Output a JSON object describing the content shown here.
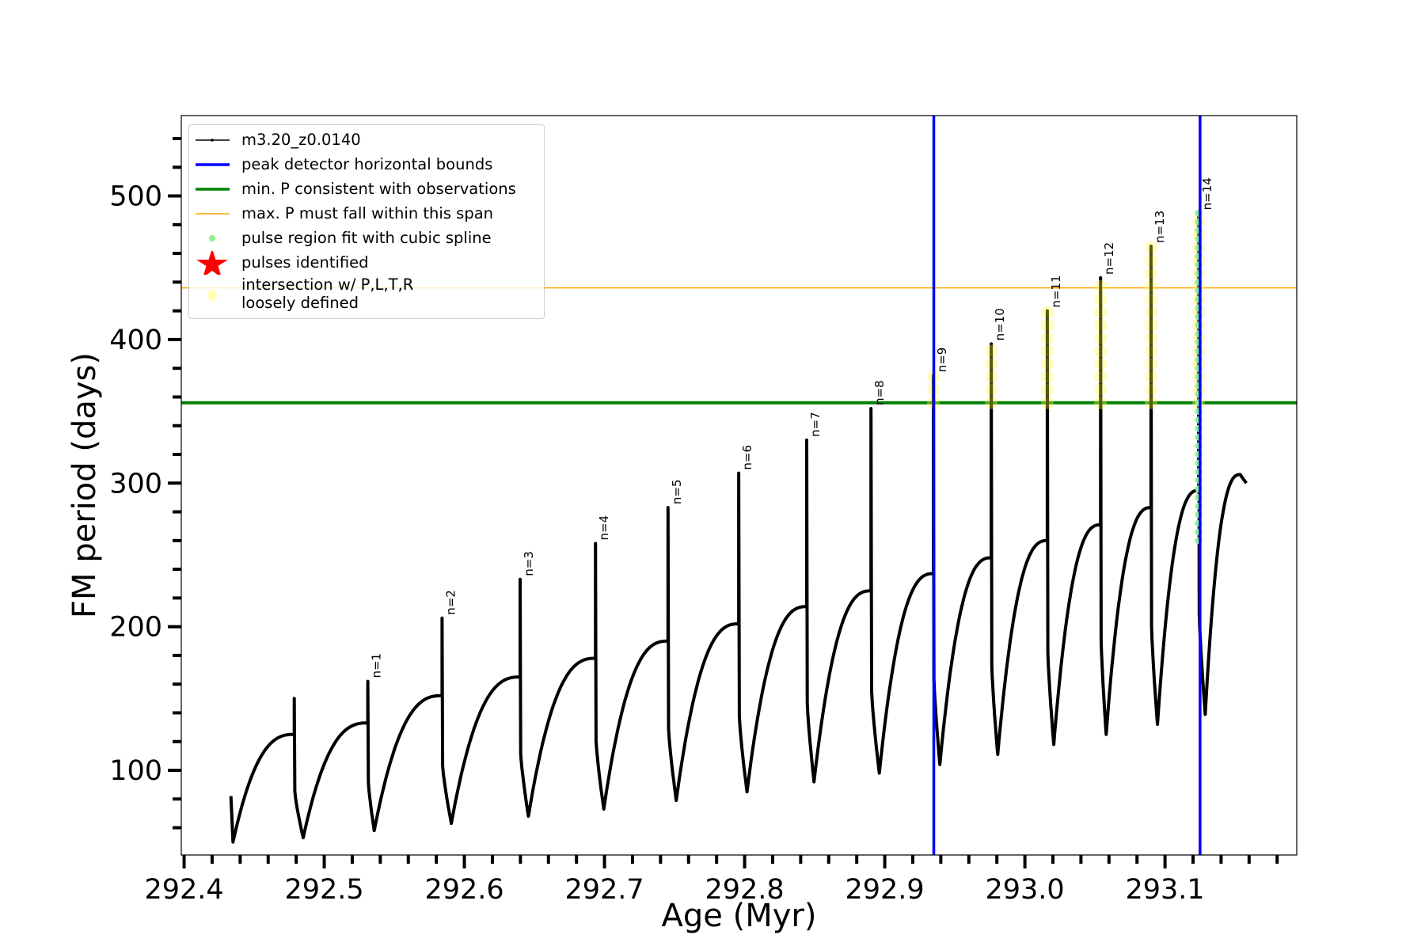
{
  "chart_data": {
    "type": "line",
    "xlabel": "Age (Myr)",
    "ylabel": "FM period (days)",
    "xlim": [
      292.398,
      293.194
    ],
    "ylim": [
      41,
      556
    ],
    "xticks": [
      292.4,
      292.5,
      292.6,
      292.7,
      292.8,
      292.9,
      293.0,
      293.1
    ],
    "xtick_labels": [
      "292.4",
      "292.5",
      "292.6",
      "292.7",
      "292.8",
      "292.9",
      "293.0",
      "293.1"
    ],
    "yticks": [
      100,
      200,
      300,
      400,
      500
    ],
    "ytick_labels": [
      "100",
      "200",
      "300",
      "400",
      "500"
    ],
    "grid": false,
    "legend_position": "top-left",
    "series_name": "m3.20_z0.0140",
    "start": {
      "age": 292.4334,
      "period": 82
    },
    "pulses": [
      {
        "label": "",
        "spike_age": 292.4786,
        "pre_max": 125,
        "peak": 150,
        "min_age": 292.485,
        "min": 53
      },
      {
        "label": "n=1",
        "spike_age": 292.5311,
        "pre_max": 133,
        "peak": 162,
        "min_age": 292.5357,
        "min": 58
      },
      {
        "label": "n=2",
        "spike_age": 292.5841,
        "pre_max": 152,
        "peak": 206,
        "min_age": 292.5907,
        "min": 63
      },
      {
        "label": "n=3",
        "spike_age": 292.6398,
        "pre_max": 165,
        "peak": 233,
        "min_age": 292.6457,
        "min": 68
      },
      {
        "label": "n=4",
        "spike_age": 292.6936,
        "pre_max": 178,
        "peak": 258,
        "min_age": 292.6995,
        "min": 73
      },
      {
        "label": "n=5",
        "spike_age": 292.7453,
        "pre_max": 190,
        "peak": 283,
        "min_age": 292.7512,
        "min": 79
      },
      {
        "label": "n=6",
        "spike_age": 292.7958,
        "pre_max": 202,
        "peak": 307,
        "min_age": 292.8017,
        "min": 85
      },
      {
        "label": "n=7",
        "spike_age": 292.8443,
        "pre_max": 214,
        "peak": 330,
        "min_age": 292.8495,
        "min": 92
      },
      {
        "label": "n=8",
        "spike_age": 292.8902,
        "pre_max": 225,
        "peak": 352,
        "min_age": 292.8961,
        "min": 98
      },
      {
        "label": "n=9",
        "spike_age": 292.9347,
        "pre_max": 237,
        "peak": 375,
        "min_age": 292.9393,
        "min": 104
      },
      {
        "label": "n=10",
        "spike_age": 292.976,
        "pre_max": 248,
        "peak": 397,
        "min_age": 292.9806,
        "min": 111
      },
      {
        "label": "n=11",
        "spike_age": 293.016,
        "pre_max": 260,
        "peak": 420,
        "min_age": 293.0206,
        "min": 118
      },
      {
        "label": "n=12",
        "spike_age": 293.054,
        "pre_max": 271,
        "peak": 443,
        "min_age": 293.058,
        "min": 125
      },
      {
        "label": "n=13",
        "spike_age": 293.09,
        "pre_max": 283,
        "peak": 465,
        "min_age": 293.0946,
        "min": 132
      },
      {
        "label": "n=14",
        "spike_age": 293.124,
        "pre_max": 295,
        "peak": 488,
        "min_age": 293.1287,
        "min": 139
      }
    ],
    "end": {
      "max_age": 293.1536,
      "max": 306,
      "age": 293.158,
      "period": 300
    },
    "peak_detector_bounds": [
      292.935,
      293.125
    ],
    "min_period_obs": 356,
    "max_period_span": 436,
    "spline_fit_range": {
      "age": 293.124,
      "from": 260,
      "to": 488
    },
    "intersection_pulses": [
      "n=9",
      "n=10",
      "n=11",
      "n=12",
      "n=13",
      "n=14"
    ],
    "legend": [
      {
        "label": "m3.20_z0.0140",
        "color": "#000000",
        "marker": "line-dot"
      },
      {
        "label": "peak detector horizontal bounds",
        "color": "#0000ff",
        "marker": "line"
      },
      {
        "label": "min. P consistent with observations",
        "color": "#008000",
        "marker": "line"
      },
      {
        "label": "max. P must fall within this span",
        "color": "#ffa500",
        "marker": "thin-line"
      },
      {
        "label": "pulse region fit with cubic spline",
        "color": "#90ee90",
        "marker": "dot"
      },
      {
        "label": "pulses identified",
        "color": "#ff0000",
        "marker": "star"
      },
      {
        "label": "intersection w/ P,L,T,R",
        "label2": "loosely defined",
        "color": "#ffff80",
        "marker": "circle"
      }
    ]
  }
}
